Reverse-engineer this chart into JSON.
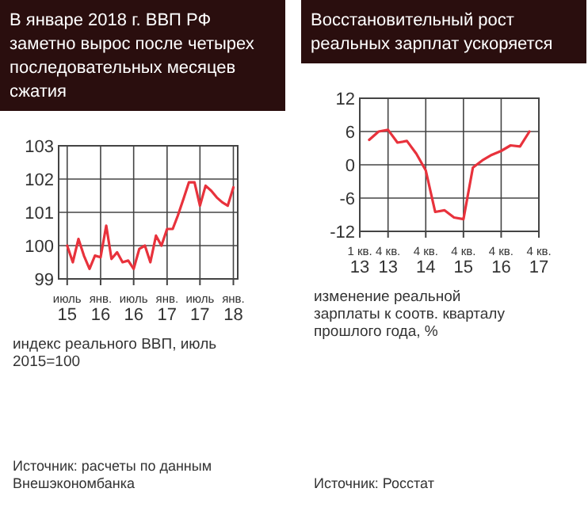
{
  "chart_data": [
    {
      "type": "line",
      "title": "В январе 2018 г. ВВП РФ заметно вырос после четырех последовательных месяцев сжатия",
      "xlabel": "индекс реального ВВП, июль 2015=100",
      "annotations": [
        "Источник: расчеты по данным Внешэкономбанка"
      ],
      "x": [
        "2015-07",
        "2015-08",
        "2015-09",
        "2015-10",
        "2015-11",
        "2015-12",
        "2016-01",
        "2016-02",
        "2016-03",
        "2016-04",
        "2016-05",
        "2016-06",
        "2016-07",
        "2016-08",
        "2016-09",
        "2016-10",
        "2016-11",
        "2016-12",
        "2017-01",
        "2017-02",
        "2017-03",
        "2017-04",
        "2017-05",
        "2017-06",
        "2017-07",
        "2017-08",
        "2017-09",
        "2017-10",
        "2017-11",
        "2017-12",
        "2018-01"
      ],
      "series": [
        {
          "color": "#e8323c",
          "values": [
            100.0,
            99.5,
            100.2,
            99.7,
            99.3,
            99.7,
            99.65,
            100.6,
            99.6,
            99.8,
            99.5,
            99.55,
            99.3,
            99.9,
            100.0,
            99.5,
            100.3,
            100.0,
            100.5,
            100.5,
            100.9,
            101.4,
            101.9,
            101.9,
            101.2,
            101.8,
            101.65,
            101.45,
            101.3,
            101.2,
            101.75
          ]
        }
      ],
      "xlim": [
        "2015-05-15",
        "2018-01-25"
      ],
      "xticks": [
        {
          "value": "2015-07",
          "label": "июль 15"
        },
        {
          "value": "2016-01",
          "label": "янв. 16"
        },
        {
          "value": "2016-07",
          "label": "июль 16"
        },
        {
          "value": "2017-01",
          "label": "янв. 17"
        },
        {
          "value": "2017-07",
          "label": "июль 17"
        },
        {
          "value": "2018-01",
          "label": "янв. 18"
        }
      ],
      "ylim": [
        99,
        103
      ],
      "yticks": [
        99,
        100,
        101,
        102,
        103
      ],
      "grid": true,
      "marker": "none",
      "line_style": "solid"
    },
    {
      "type": "line",
      "title": "Восстановительный рост реальных зарплат ускоряется",
      "xlabel": "изменение реальной зарплаты к соотв. кварталу прошлого года, %",
      "annotations": [
        "Источник: Росстат"
      ],
      "categories": [
        "1 кв. 13",
        null,
        null,
        "4 кв. 13",
        null,
        null,
        null,
        "4 кв. 14",
        null,
        null,
        null,
        "4 кв. 15",
        null,
        null,
        null,
        "4 кв. 16",
        null,
        null,
        null,
        "4 кв. 17"
      ],
      "series": [
        {
          "color": "#e8323c",
          "values": [
            null,
            4.5,
            6.0,
            6.3,
            4.0,
            4.3,
            2.0,
            -1.0,
            -8.5,
            -8.2,
            -9.5,
            -9.8,
            -0.5,
            0.8,
            1.8,
            2.5,
            3.5,
            3.3,
            6.0,
            null
          ]
        }
      ],
      "ylim": [
        -12,
        12
      ],
      "yticks": [
        -12,
        -6,
        0,
        6,
        12
      ],
      "grid": true,
      "marker": "none",
      "line_style": "solid"
    }
  ]
}
